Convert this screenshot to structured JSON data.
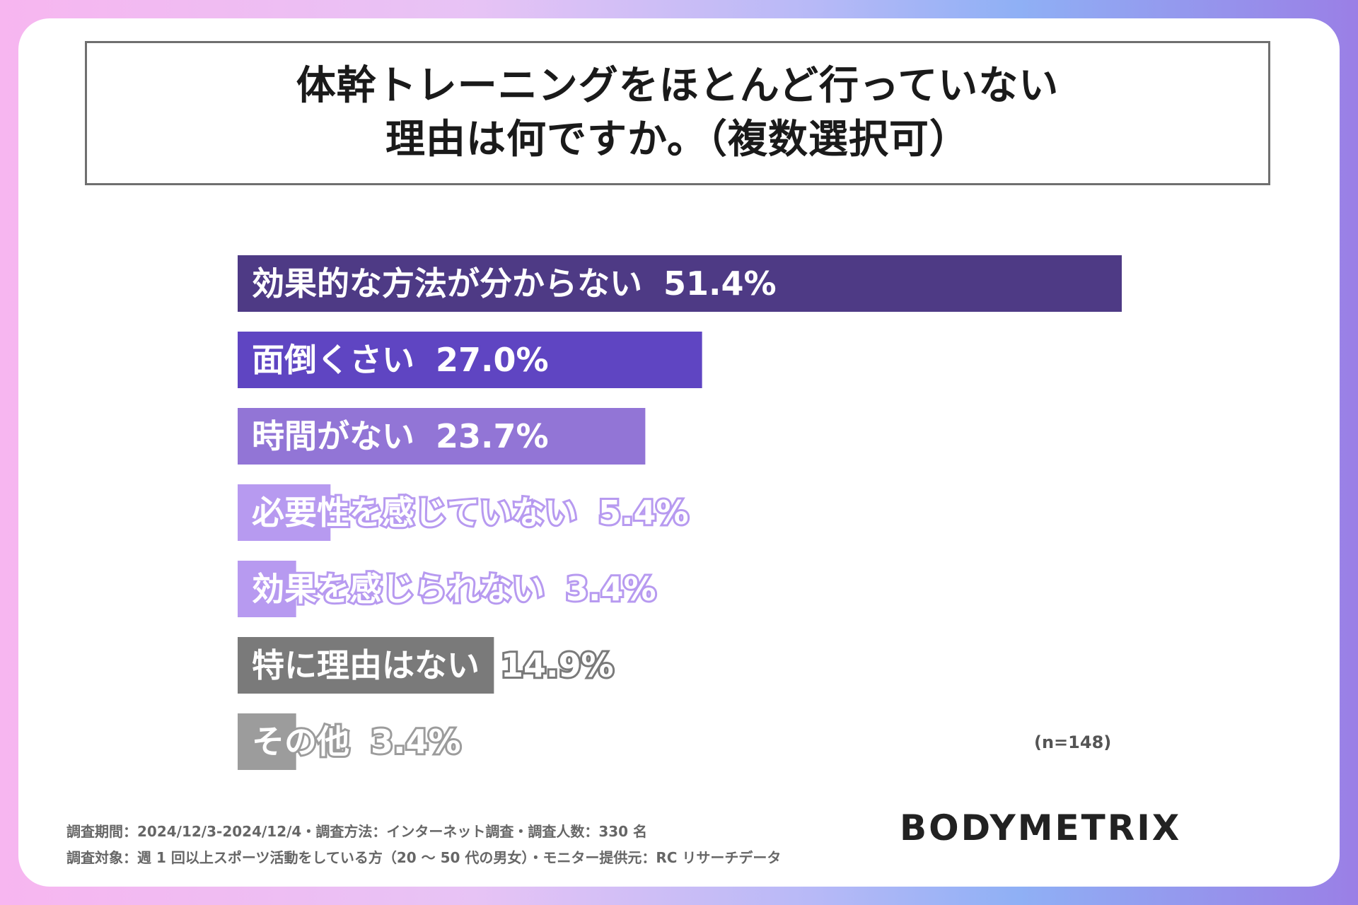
{
  "title_lines": [
    "体幹トレーニングをほとんど行っていない",
    "理由は何ですか。（複数選択可）"
  ],
  "chart_data": {
    "type": "bar",
    "orientation": "horizontal",
    "categories": [
      "効果的な方法が分からない",
      "面倒くさい",
      "時間がない",
      "必要性を感じていない",
      "効果を感じられない",
      "特に理由はない",
      "その他"
    ],
    "values": [
      51.4,
      27.0,
      23.7,
      5.4,
      3.4,
      14.9,
      3.4
    ],
    "value_labels": [
      "51.4%",
      "27.0%",
      "23.7%",
      "5.4%",
      "3.4%",
      "14.9%",
      "3.4%"
    ],
    "colors": [
      "#4e3a85",
      "#5f45c2",
      "#9275d6",
      "#b79af0",
      "#b79af0",
      "#7a7a7a",
      "#9c9c9c"
    ],
    "xlim": [
      0,
      51.4
    ],
    "grid": false,
    "legend": "none"
  },
  "n_label": "(n=148)",
  "notes": [
    "調査期間：2024/12/3-2024/12/4・調査方法：インターネット調査・調査人数：330 名",
    "調査対象：週 1 回以上スポーツ活動をしている方（20 ～ 50 代の男女）・モニター提供元：RC リサーチデータ"
  ],
  "brand": "BODYMETRIX"
}
